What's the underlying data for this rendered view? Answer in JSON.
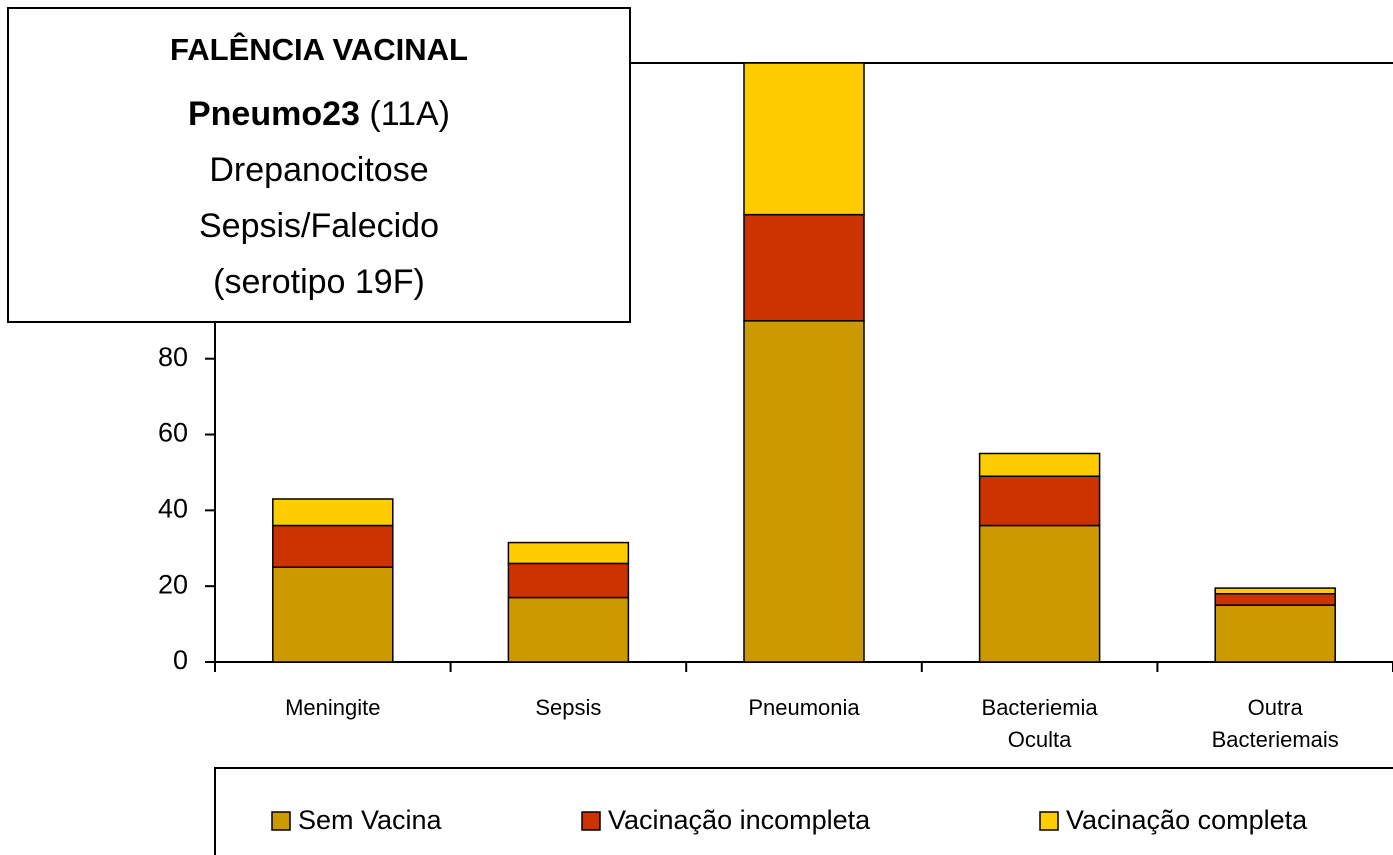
{
  "chart_data": {
    "type": "stacked_bar",
    "annotation": {
      "title": "FALÊNCIA VACINAL",
      "vaccine": "Pneumo23",
      "serotype": "(11A)",
      "lines": [
        "Drepanocitose",
        "Sepsis/Falecido",
        "(serotipo 19F)"
      ]
    },
    "categories": [
      "Meningite",
      "Sepsis",
      "Pneumonia",
      "Bacteriemia Oculta",
      "Outra Bacteriemais"
    ],
    "series": [
      {
        "name": "Sem Vacina",
        "color": "#cc9900",
        "values": [
          25,
          17,
          90,
          36,
          15
        ]
      },
      {
        "name": "Vacinação incompleta",
        "color": "#cc3300",
        "values": [
          11,
          9,
          28,
          13,
          3
        ]
      },
      {
        "name": "Vacinação completa",
        "color": "#ffcc00",
        "values": [
          7,
          5.5,
          40,
          6,
          1.5
        ]
      }
    ],
    "ylim": [
      0,
      158
    ],
    "yticks": [
      0,
      20,
      40,
      60,
      80
    ],
    "legend": "bottom"
  }
}
